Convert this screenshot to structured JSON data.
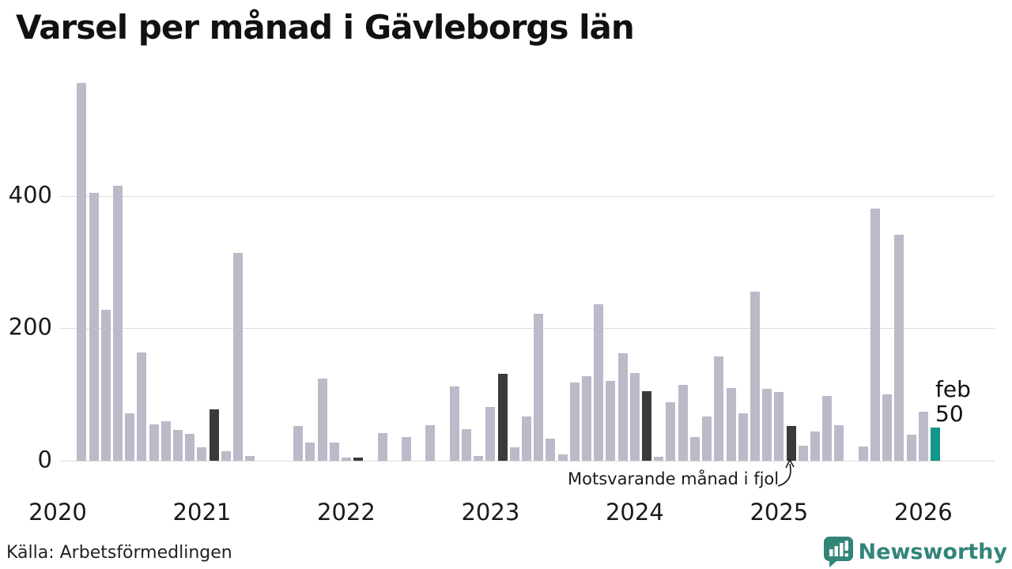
{
  "title": "Varsel per månad i Gävleborgs län",
  "footer": {
    "source": "Källa: Arbetsförmedlingen",
    "logo_text": "Newsworthy"
  },
  "chart_data": {
    "type": "bar",
    "title": "Varsel per månad i Gävleborgs län",
    "x_start_month": "2020-03",
    "x_end_month": "2026-02",
    "values": [
      570,
      404,
      228,
      415,
      72,
      163,
      55,
      60,
      46,
      40,
      20,
      78,
      14,
      314,
      7,
      0,
      0,
      0,
      52,
      28,
      124,
      27,
      5,
      5,
      0,
      42,
      0,
      36,
      0,
      54,
      0,
      112,
      48,
      7,
      81,
      131,
      20,
      67,
      222,
      34,
      10,
      118,
      128,
      236,
      120,
      162,
      133,
      105,
      6,
      88,
      114,
      36,
      67,
      157,
      110,
      72,
      255,
      108,
      104,
      52,
      23,
      44,
      98,
      54,
      0,
      21,
      381,
      100,
      341,
      39,
      74,
      50
    ],
    "highlight_indices": [
      11,
      23,
      35,
      47,
      59
    ],
    "current_index": 71,
    "year_labels": [
      "2020",
      "2021",
      "2022",
      "2023",
      "2024",
      "2025",
      "2026"
    ],
    "yticks": [
      0,
      200,
      400
    ],
    "ylim": [
      0,
      600
    ],
    "grid": true,
    "annotation": {
      "text": "Motsvarande månad i fjol"
    },
    "current_label": {
      "month": "feb",
      "value": "50"
    },
    "colors": {
      "bar": "#bcb9c9",
      "highlight": "#3a3a3a",
      "current": "#14968a",
      "grid": "#dcdcdc",
      "logo": "#318579"
    }
  }
}
